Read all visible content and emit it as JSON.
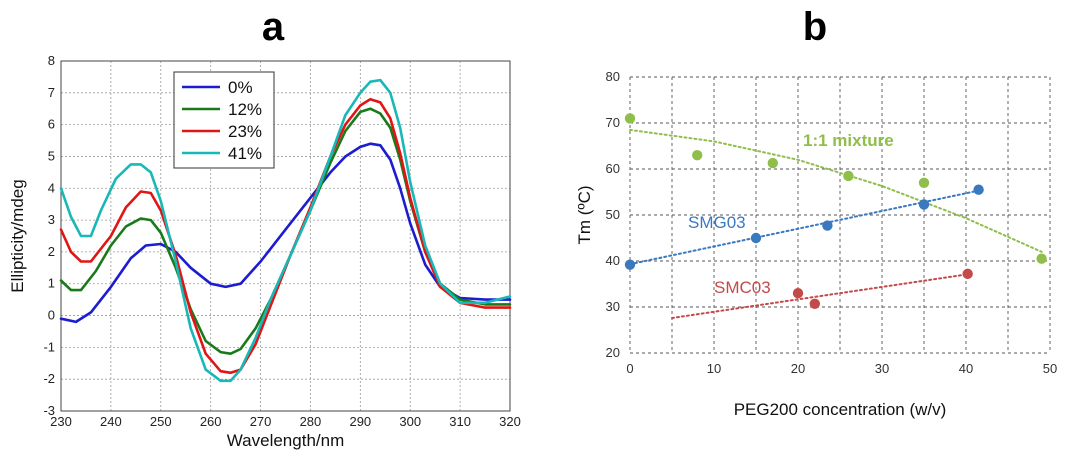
{
  "panels": {
    "a": "a",
    "b": "b"
  },
  "chart_data": [
    {
      "type": "line",
      "panel": "a",
      "xlabel": "Wavelength/nm",
      "ylabel": "Ellipticity/mdeg",
      "xlim": [
        230,
        320
      ],
      "ylim": [
        -3,
        8
      ],
      "xticks": [
        230,
        240,
        250,
        260,
        270,
        280,
        290,
        300,
        310,
        320
      ],
      "yticks": [
        -3,
        -2,
        -1,
        0,
        1,
        2,
        3,
        4,
        5,
        6,
        7,
        8
      ],
      "grid": true,
      "legend_position": "top-center",
      "series": [
        {
          "name": "0%",
          "color": "#1c1cd0",
          "x": [
            230,
            233,
            236,
            240,
            244,
            247,
            250,
            253,
            256,
            260,
            263,
            266,
            270,
            275,
            280,
            284,
            287,
            290,
            292,
            294,
            296,
            298,
            300,
            303,
            306,
            310,
            315,
            320
          ],
          "y": [
            -0.1,
            -0.2,
            0.1,
            0.9,
            1.8,
            2.2,
            2.25,
            2.0,
            1.5,
            1.0,
            0.9,
            1.0,
            1.7,
            2.7,
            3.7,
            4.5,
            5.0,
            5.3,
            5.4,
            5.35,
            4.9,
            4.0,
            2.9,
            1.6,
            0.9,
            0.55,
            0.5,
            0.5
          ]
        },
        {
          "name": "12%",
          "color": "#1a7a1a",
          "x": [
            230,
            232,
            234,
            237,
            240,
            243,
            246,
            248,
            250,
            253,
            256,
            259,
            262,
            264,
            266,
            269,
            272,
            276,
            280,
            284,
            287,
            290,
            292,
            294,
            296,
            298,
            300,
            303,
            306,
            310,
            315,
            320
          ],
          "y": [
            1.1,
            0.8,
            0.8,
            1.4,
            2.2,
            2.8,
            3.05,
            3.0,
            2.6,
            1.5,
            0.2,
            -0.8,
            -1.15,
            -1.2,
            -1.05,
            -0.4,
            0.5,
            1.9,
            3.3,
            4.8,
            5.8,
            6.4,
            6.5,
            6.35,
            5.9,
            4.9,
            3.6,
            2.0,
            1.0,
            0.5,
            0.35,
            0.35
          ]
        },
        {
          "name": "23%",
          "color": "#e01515",
          "x": [
            230,
            232,
            234,
            236,
            240,
            243,
            246,
            248,
            250,
            253,
            256,
            259,
            262,
            264,
            266,
            269,
            272,
            276,
            280,
            284,
            287,
            290,
            292,
            294,
            296,
            298,
            300,
            303,
            306,
            310,
            315,
            320
          ],
          "y": [
            2.7,
            2.0,
            1.7,
            1.7,
            2.5,
            3.4,
            3.9,
            3.85,
            3.3,
            1.9,
            0.1,
            -1.2,
            -1.75,
            -1.8,
            -1.7,
            -0.9,
            0.3,
            1.9,
            3.4,
            5.0,
            6.0,
            6.6,
            6.8,
            6.7,
            6.2,
            5.1,
            3.7,
            2.0,
            0.9,
            0.4,
            0.25,
            0.25
          ]
        },
        {
          "name": "41%",
          "color": "#18b8b8",
          "x": [
            230,
            232,
            234,
            236,
            238,
            241,
            244,
            246,
            248,
            250,
            253,
            256,
            259,
            262,
            264,
            266,
            269,
            272,
            276,
            280,
            284,
            287,
            290,
            292,
            294,
            296,
            298,
            300,
            303,
            306,
            310,
            315,
            320
          ],
          "y": [
            4.0,
            3.1,
            2.5,
            2.5,
            3.3,
            4.3,
            4.75,
            4.75,
            4.5,
            3.6,
            1.7,
            -0.4,
            -1.7,
            -2.05,
            -2.05,
            -1.7,
            -0.7,
            0.5,
            1.9,
            3.3,
            5.0,
            6.3,
            7.0,
            7.35,
            7.4,
            7.0,
            5.9,
            4.2,
            2.2,
            1.0,
            0.4,
            0.4,
            0.6
          ]
        }
      ]
    },
    {
      "type": "scatter",
      "panel": "b",
      "xlabel": "PEG200 concentration (w/v)",
      "ylabel": "Tm (ºC)",
      "xlim": [
        0,
        50
      ],
      "ylim": [
        20,
        80
      ],
      "xticks": [
        0,
        10,
        20,
        30,
        40,
        50
      ],
      "yticks": [
        20,
        30,
        40,
        50,
        60,
        70,
        80
      ],
      "grid": true,
      "series": [
        {
          "name": "1:1 mixture",
          "color": "#8fbf4a",
          "x": [
            0,
            8,
            17,
            26,
            35,
            49
          ],
          "y": [
            71,
            63,
            61.3,
            58.5,
            57,
            40.5
          ],
          "trend_x": [
            0,
            10,
            20,
            30,
            40,
            49
          ],
          "trend_y": [
            68.5,
            66.0,
            62.0,
            56.3,
            49.3,
            42.0
          ]
        },
        {
          "name": "SMG03",
          "color": "#3a78c0",
          "x": [
            0,
            15,
            23.5,
            35,
            41.5
          ],
          "y": [
            39.2,
            45,
            47.7,
            52.3,
            55.5
          ],
          "trend_x": [
            0,
            41.5
          ],
          "trend_y": [
            39.3,
            55.3
          ]
        },
        {
          "name": "SMC03",
          "color": "#c44a4a",
          "x": [
            20,
            22,
            40.2
          ],
          "y": [
            33,
            30.7,
            37.2
          ],
          "trend_x": [
            5,
            40.5
          ],
          "trend_y": [
            27.6,
            37.2
          ]
        }
      ]
    }
  ]
}
